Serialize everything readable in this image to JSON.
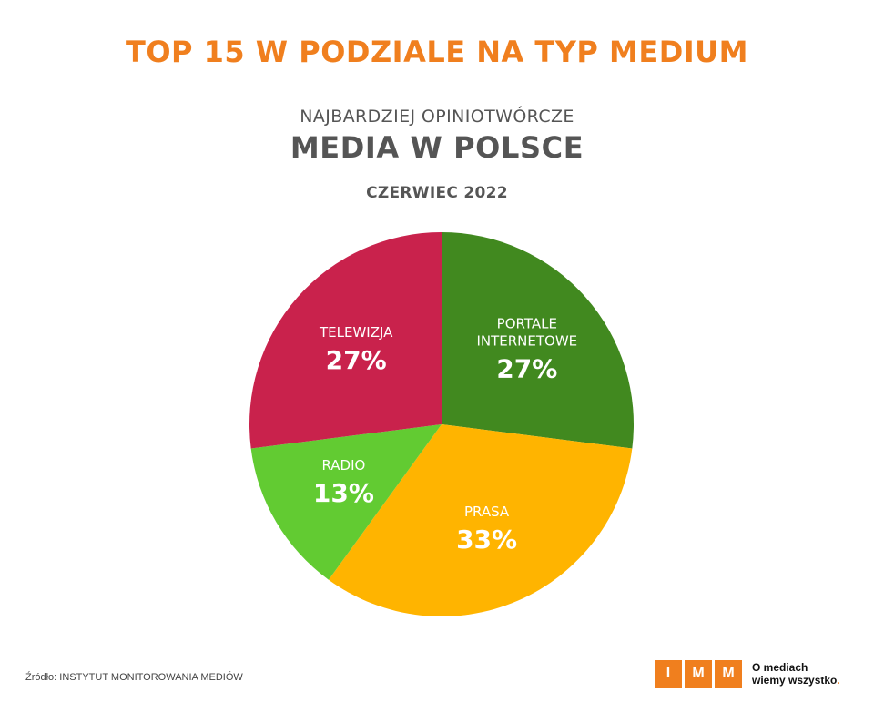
{
  "header": {
    "headline": "TOP 15 W PODZIALE NA TYP MEDIUM",
    "subtitle": "NAJBARDZIEJ OPINIOTWÓRCZE",
    "title": "MEDIA W POLSCE",
    "date": "CZERWIEC 2022"
  },
  "chart_data": {
    "type": "pie",
    "start_angle_deg": 0,
    "direction": "clockwise",
    "slices": [
      {
        "label_lines": [
          "PORTALE",
          "INTERNETOWE"
        ],
        "value": 27,
        "value_label": "27%",
        "color": "#41891f"
      },
      {
        "label_lines": [
          "PRASA"
        ],
        "value": 33,
        "value_label": "33%",
        "color": "#ffb400"
      },
      {
        "label_lines": [
          "RADIO"
        ],
        "value": 13,
        "value_label": "13%",
        "color": "#62cb32"
      },
      {
        "label_lines": [
          "TELEWIZJA"
        ],
        "value": 27,
        "value_label": "27%",
        "color": "#c9224c"
      }
    ]
  },
  "footer": {
    "source": "Źródło: INSTYTUT MONITOROWANIA MEDIÓW",
    "logo": {
      "letters": [
        "I",
        "M",
        "M"
      ],
      "tagline_line1": "O mediach",
      "tagline_line2": "wiemy wszystko",
      "tagline_dot": ".",
      "color": "#f07f1e"
    }
  }
}
